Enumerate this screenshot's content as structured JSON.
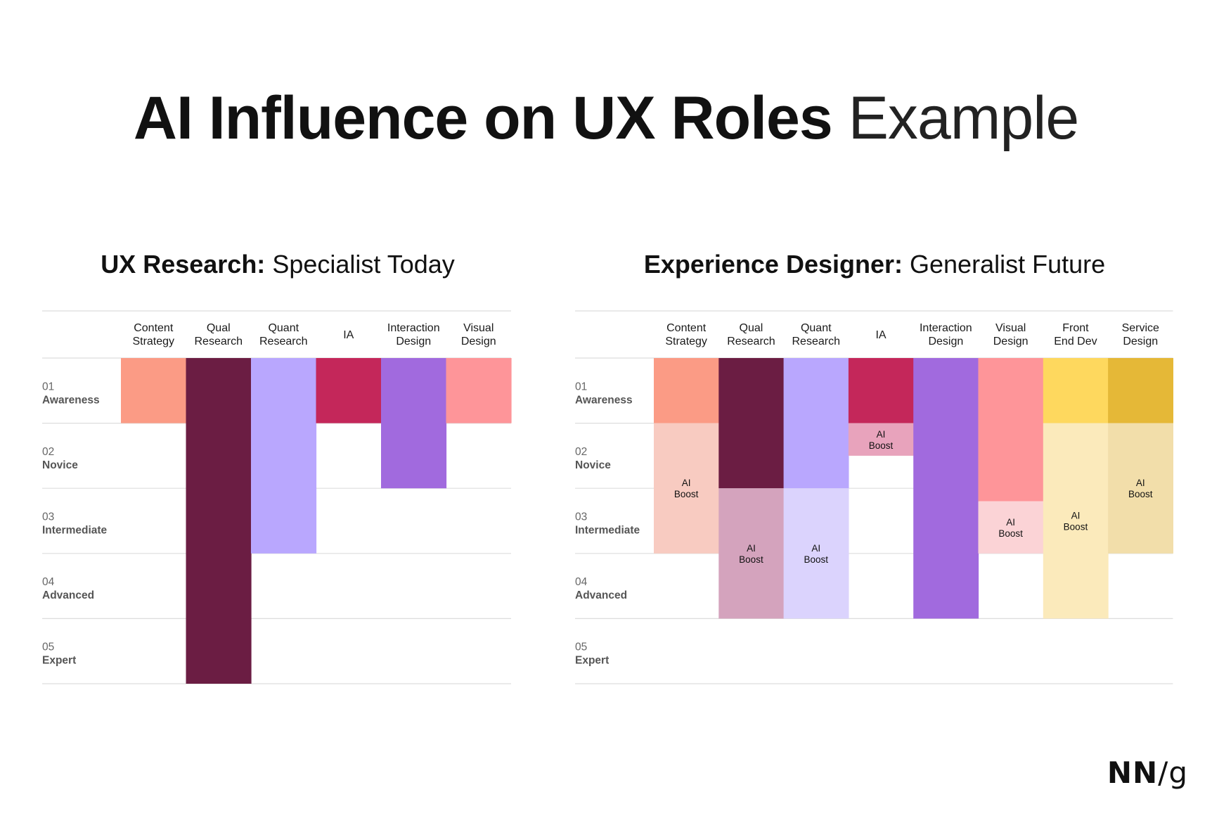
{
  "title": {
    "bold": "AI Influence on UX Roles",
    "light": "Example"
  },
  "colors": {
    "content_strategy": "#fb9b85",
    "content_strategy_boost": "#f8cbc1",
    "qual_research": "#6b1d43",
    "qual_research_boost": "#d4a3bd",
    "quant_research": "#b9a7fe",
    "quant_research_boost": "#dbd3fd",
    "ia": "#c4275a",
    "ia_boost": "#e8a3bc",
    "interaction_design": "#a16ade",
    "visual_design": "#fe9599",
    "visual_design_boost": "#fbd3d6",
    "front_end_dev": "#fed85e",
    "front_end_dev_boost": "#fbeabb",
    "service_design": "#e5b837",
    "service_design_boost": "#f2deaa",
    "gridline": "#dddddd"
  },
  "charts": [
    {
      "title_bold": "UX Research:",
      "title_light": "Specialist Today",
      "columns": [
        {
          "line1": "Content",
          "line2": "Strategy"
        },
        {
          "line1": "Qual",
          "line2": "Research"
        },
        {
          "line1": "Quant",
          "line2": "Research"
        },
        {
          "line1": "IA",
          "line2": ""
        },
        {
          "line1": "Interaction",
          "line2": "Design"
        },
        {
          "line1": "Visual",
          "line2": "Design"
        }
      ],
      "levels": [
        {
          "number": "01",
          "name": "Awareness"
        },
        {
          "number": "02",
          "name": "Novice"
        },
        {
          "number": "03",
          "name": "Intermediate"
        },
        {
          "number": "04",
          "name": "Advanced"
        },
        {
          "number": "05",
          "name": "Expert"
        }
      ]
    },
    {
      "title_bold": "Experience Designer:",
      "title_light": "Generalist Future",
      "columns": [
        {
          "line1": "Content",
          "line2": "Strategy"
        },
        {
          "line1": "Qual",
          "line2": "Research"
        },
        {
          "line1": "Quant",
          "line2": "Research"
        },
        {
          "line1": "IA",
          "line2": ""
        },
        {
          "line1": "Interaction",
          "line2": "Design"
        },
        {
          "line1": "Visual",
          "line2": "Design"
        },
        {
          "line1": "Front",
          "line2": "End Dev"
        },
        {
          "line1": "Service",
          "line2": "Design"
        }
      ],
      "levels": [
        {
          "number": "01",
          "name": "Awareness"
        },
        {
          "number": "02",
          "name": "Novice"
        },
        {
          "number": "03",
          "name": "Intermediate"
        },
        {
          "number": "04",
          "name": "Advanced"
        },
        {
          "number": "05",
          "name": "Expert"
        }
      ]
    }
  ],
  "chart_data": [
    {
      "type": "bar",
      "title": "UX Research: Specialist Today",
      "categories": [
        "Content Strategy",
        "Qual Research",
        "Quant Research",
        "IA",
        "Interaction Design",
        "Visual Design"
      ],
      "y_categories": [
        "01 Awareness",
        "02 Novice",
        "03 Intermediate",
        "04 Advanced",
        "05 Expert"
      ],
      "ylim": [
        0,
        5
      ],
      "series": [
        {
          "values": [
            1,
            5,
            3,
            1,
            2,
            1
          ],
          "colors": [
            "#fb9b85",
            "#6b1d43",
            "#b9a7fe",
            "#c4275a",
            "#a16ade",
            "#fe9599"
          ]
        }
      ],
      "boost": [
        null,
        null,
        null,
        null,
        null,
        null
      ],
      "grid": true
    },
    {
      "type": "bar",
      "title": "Experience Designer: Generalist Future",
      "categories": [
        "Content Strategy",
        "Qual Research",
        "Quant Research",
        "IA",
        "Interaction Design",
        "Visual Design",
        "Front End Dev",
        "Service Design"
      ],
      "y_categories": [
        "01 Awareness",
        "02 Novice",
        "03 Intermediate",
        "04 Advanced",
        "05 Expert"
      ],
      "ylim": [
        0,
        5
      ],
      "series": [
        {
          "values": [
            1,
            2,
            2,
            1,
            4,
            2.2,
            1,
            1
          ],
          "colors": [
            "#fb9b85",
            "#6b1d43",
            "#b9a7fe",
            "#c4275a",
            "#a16ade",
            "#fe9599",
            "#fed85e",
            "#e5b837"
          ]
        },
        {
          "name": "AI Boost",
          "values": [
            2,
            2,
            2,
            0.5,
            0,
            0.8,
            3,
            2
          ],
          "colors": [
            "#f8cbc1",
            "#d4a3bd",
            "#dbd3fd",
            "#e8a3bc",
            "#a16ade",
            "#fbd3d6",
            "#fbeabb",
            "#f2deaa"
          ]
        }
      ],
      "boost_label_line1": "AI",
      "boost_label_line2": "Boost",
      "grid": true
    }
  ],
  "logo": {
    "nn": "NN",
    "slash": "/",
    "g": "g"
  }
}
